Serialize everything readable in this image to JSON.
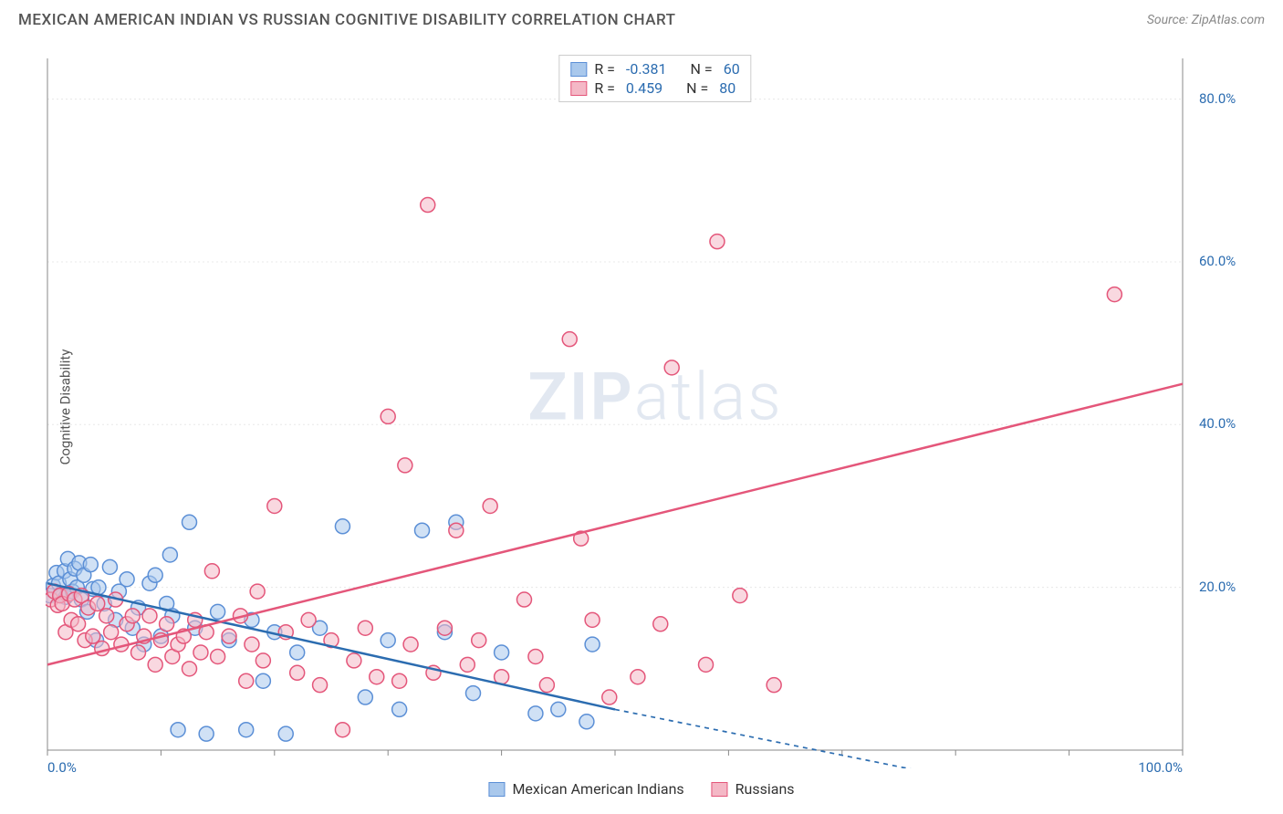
{
  "header": {
    "title": "MEXICAN AMERICAN INDIAN VS RUSSIAN COGNITIVE DISABILITY CORRELATION CHART",
    "source": "Source: ZipAtlas.com"
  },
  "watermark": {
    "zip": "ZIP",
    "atlas": "atlas"
  },
  "y_axis": {
    "label": "Cognitive Disability"
  },
  "chart": {
    "type": "scatter",
    "xlim": [
      0,
      100
    ],
    "ylim": [
      0,
      85
    ],
    "x_tick_positions": [
      0,
      10,
      20,
      30,
      40,
      50,
      60,
      70,
      80,
      90,
      100
    ],
    "x_tick_labels_shown": {
      "0": "0.0%",
      "100": "100.0%"
    },
    "y_tick_positions": [
      20,
      40,
      60,
      80
    ],
    "y_tick_labels": {
      "20": "20.0%",
      "40": "40.0%",
      "60": "60.0%",
      "80": "80.0%"
    },
    "background_color": "#ffffff",
    "grid_color": "#e8e8e8",
    "grid_dash": "2,3",
    "axis_color": "#888888",
    "tick_label_color": "#2b6cb0",
    "tick_label_fontsize": 15,
    "marker_radius": 8,
    "marker_stroke_width": 1.5,
    "series": [
      {
        "name": "Mexican American Indians",
        "fill_color": "#a9c8ec",
        "stroke_color": "#5b8fd6",
        "fill_opacity": 0.55,
        "r_label": "R =",
        "r_value": "-0.381",
        "n_label": "N =",
        "n_value": "60",
        "regression": {
          "x1": 0,
          "y1": 20.5,
          "x2": 50,
          "y2": 5.0,
          "extrap_x1": 50,
          "extrap_y1": 5.0,
          "extrap_x2": 82,
          "extrap_y2": -4.0,
          "color": "#2b6cb0",
          "width": 2.5,
          "dash_extrap": "5,5"
        },
        "points": [
          [
            0.2,
            19.0
          ],
          [
            0.5,
            20.2
          ],
          [
            0.8,
            21.8
          ],
          [
            1.0,
            20.5
          ],
          [
            1.2,
            19.2
          ],
          [
            1.5,
            22.0
          ],
          [
            1.6,
            18.8
          ],
          [
            1.8,
            23.5
          ],
          [
            2.0,
            21.0
          ],
          [
            2.2,
            19.5
          ],
          [
            2.4,
            22.3
          ],
          [
            2.6,
            20.0
          ],
          [
            2.8,
            23.0
          ],
          [
            3.0,
            18.5
          ],
          [
            3.2,
            21.5
          ],
          [
            3.5,
            17.0
          ],
          [
            3.8,
            22.8
          ],
          [
            4.0,
            19.8
          ],
          [
            4.3,
            13.5
          ],
          [
            4.5,
            20.0
          ],
          [
            5.0,
            18.0
          ],
          [
            5.5,
            22.5
          ],
          [
            6.0,
            16.0
          ],
          [
            6.3,
            19.5
          ],
          [
            7.0,
            21.0
          ],
          [
            7.5,
            15.0
          ],
          [
            8.0,
            17.5
          ],
          [
            8.5,
            13.0
          ],
          [
            9.0,
            20.5
          ],
          [
            9.5,
            21.5
          ],
          [
            10.0,
            14.0
          ],
          [
            10.5,
            18.0
          ],
          [
            10.8,
            24.0
          ],
          [
            11.0,
            16.5
          ],
          [
            11.5,
            2.5
          ],
          [
            12.5,
            28.0
          ],
          [
            13.0,
            15.0
          ],
          [
            14.0,
            2.0
          ],
          [
            15.0,
            17.0
          ],
          [
            16.0,
            13.5
          ],
          [
            17.5,
            2.5
          ],
          [
            18.0,
            16.0
          ],
          [
            19.0,
            8.5
          ],
          [
            20.0,
            14.5
          ],
          [
            21.0,
            2.0
          ],
          [
            22.0,
            12.0
          ],
          [
            24.0,
            15.0
          ],
          [
            26.0,
            27.5
          ],
          [
            28.0,
            6.5
          ],
          [
            30.0,
            13.5
          ],
          [
            31.0,
            5.0
          ],
          [
            33.0,
            27.0
          ],
          [
            35.0,
            14.5
          ],
          [
            36.0,
            28.0
          ],
          [
            37.5,
            7.0
          ],
          [
            40.0,
            12.0
          ],
          [
            43.0,
            4.5
          ],
          [
            45.0,
            5.0
          ],
          [
            47.5,
            3.5
          ],
          [
            48.0,
            13.0
          ]
        ]
      },
      {
        "name": "Russians",
        "fill_color": "#f4b8c6",
        "stroke_color": "#e4567a",
        "fill_opacity": 0.55,
        "r_label": "R =",
        "r_value": "0.459",
        "n_label": "N =",
        "n_value": "80",
        "regression": {
          "x1": 0,
          "y1": 10.5,
          "x2": 100,
          "y2": 45.0,
          "color": "#e4567a",
          "width": 2.5
        },
        "points": [
          [
            0.3,
            18.5
          ],
          [
            0.6,
            19.5
          ],
          [
            0.9,
            17.8
          ],
          [
            1.1,
            19.0
          ],
          [
            1.3,
            18.0
          ],
          [
            1.6,
            14.5
          ],
          [
            1.9,
            19.2
          ],
          [
            2.1,
            16.0
          ],
          [
            2.4,
            18.5
          ],
          [
            2.7,
            15.5
          ],
          [
            3.0,
            19.0
          ],
          [
            3.3,
            13.5
          ],
          [
            3.6,
            17.5
          ],
          [
            4.0,
            14.0
          ],
          [
            4.4,
            18.0
          ],
          [
            4.8,
            12.5
          ],
          [
            5.2,
            16.5
          ],
          [
            5.6,
            14.5
          ],
          [
            6.0,
            18.5
          ],
          [
            6.5,
            13.0
          ],
          [
            7.0,
            15.5
          ],
          [
            7.5,
            16.5
          ],
          [
            8.0,
            12.0
          ],
          [
            8.5,
            14.0
          ],
          [
            9.0,
            16.5
          ],
          [
            9.5,
            10.5
          ],
          [
            10.0,
            13.5
          ],
          [
            10.5,
            15.5
          ],
          [
            11.0,
            11.5
          ],
          [
            11.5,
            13.0
          ],
          [
            12.0,
            14.0
          ],
          [
            12.5,
            10.0
          ],
          [
            13.0,
            16.0
          ],
          [
            13.5,
            12.0
          ],
          [
            14.0,
            14.5
          ],
          [
            14.5,
            22.0
          ],
          [
            15.0,
            11.5
          ],
          [
            16.0,
            14.0
          ],
          [
            17.0,
            16.5
          ],
          [
            17.5,
            8.5
          ],
          [
            18.0,
            13.0
          ],
          [
            18.5,
            19.5
          ],
          [
            19.0,
            11.0
          ],
          [
            20.0,
            30.0
          ],
          [
            21.0,
            14.5
          ],
          [
            22.0,
            9.5
          ],
          [
            23.0,
            16.0
          ],
          [
            24.0,
            8.0
          ],
          [
            25.0,
            13.5
          ],
          [
            26.0,
            2.5
          ],
          [
            27.0,
            11.0
          ],
          [
            28.0,
            15.0
          ],
          [
            29.0,
            9.0
          ],
          [
            30.0,
            41.0
          ],
          [
            31.0,
            8.5
          ],
          [
            31.5,
            35.0
          ],
          [
            32.0,
            13.0
          ],
          [
            33.5,
            67.0
          ],
          [
            34.0,
            9.5
          ],
          [
            35.0,
            15.0
          ],
          [
            36.0,
            27.0
          ],
          [
            37.0,
            10.5
          ],
          [
            38.0,
            13.5
          ],
          [
            39.0,
            30.0
          ],
          [
            40.0,
            9.0
          ],
          [
            42.0,
            18.5
          ],
          [
            43.0,
            11.5
          ],
          [
            44.0,
            8.0
          ],
          [
            46.0,
            50.5
          ],
          [
            47.0,
            26.0
          ],
          [
            48.0,
            16.0
          ],
          [
            49.5,
            6.5
          ],
          [
            52.0,
            9.0
          ],
          [
            54.0,
            15.5
          ],
          [
            55.0,
            47.0
          ],
          [
            58.0,
            10.5
          ],
          [
            59.0,
            62.5
          ],
          [
            61.0,
            19.0
          ],
          [
            64.0,
            8.0
          ],
          [
            94.0,
            56.0
          ]
        ]
      }
    ],
    "bottom_legend": [
      {
        "label": "Mexican American Indians",
        "fill": "#a9c8ec",
        "stroke": "#5b8fd6"
      },
      {
        "label": "Russians",
        "fill": "#f4b8c6",
        "stroke": "#e4567a"
      }
    ]
  }
}
